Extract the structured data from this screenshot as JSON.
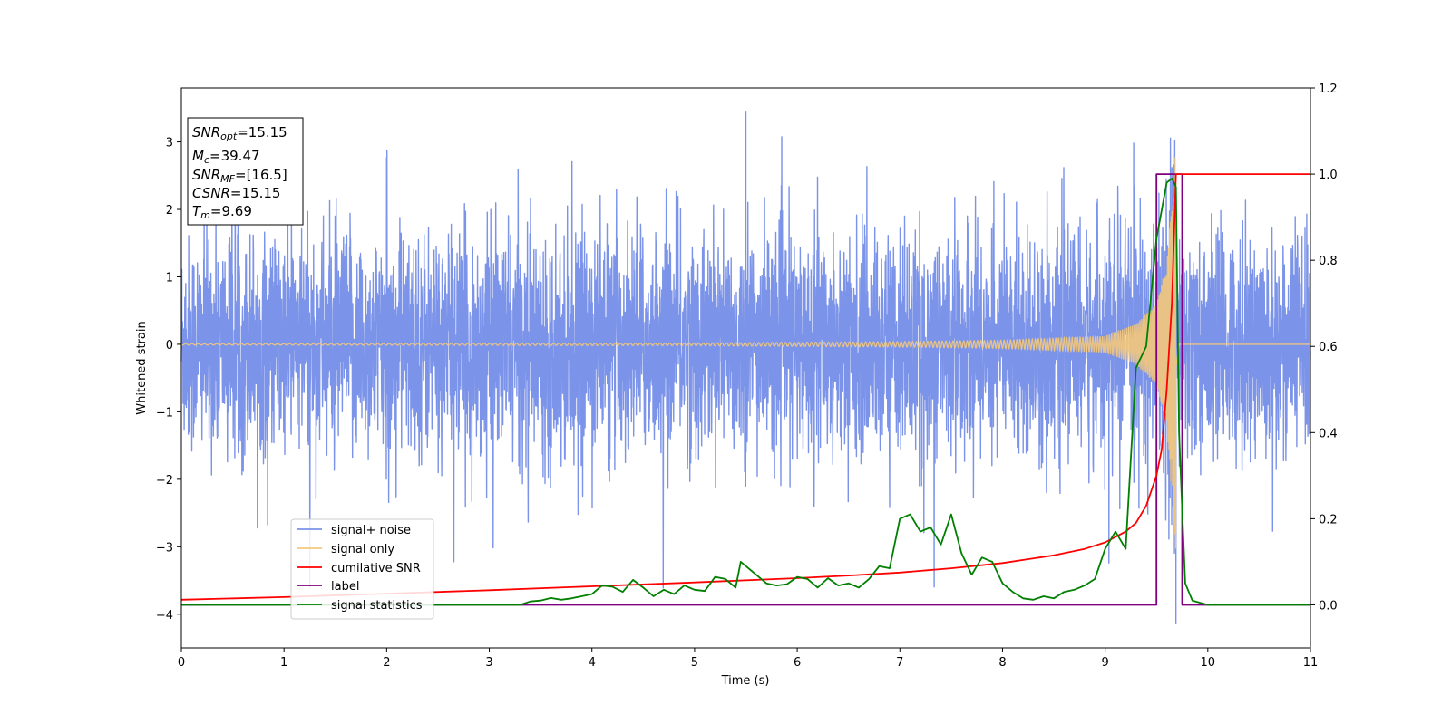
{
  "chart_data": {
    "type": "line",
    "xlabel": "Time (s)",
    "ylabel": "Whitened strain",
    "xlim": [
      0,
      11
    ],
    "ylim": [
      -4.5,
      3.8
    ],
    "y2lim": [
      -0.1,
      1.2
    ],
    "x_ticks": [
      "0",
      "1",
      "2",
      "3",
      "4",
      "5",
      "6",
      "7",
      "8",
      "9",
      "10",
      "11"
    ],
    "y_ticks": [
      "3",
      "2",
      "1",
      "0",
      "−1",
      "−2",
      "−3",
      "−4"
    ],
    "y_tick_values": [
      3,
      2,
      1,
      0,
      -1,
      -2,
      -3,
      -4
    ],
    "y2_ticks": [
      "1.2",
      "1.0",
      "0.8",
      "0.6",
      "0.4",
      "0.2",
      "0.0"
    ],
    "y2_tick_values": [
      1.2,
      1.0,
      0.8,
      0.6,
      0.4,
      0.2,
      0.0
    ],
    "grid": false,
    "legend_position": "lower-left",
    "info_box": {
      "snr_opt": {
        "main": "SNR",
        "sub": "opt",
        "value": "=15.15"
      },
      "mc": {
        "main": "M",
        "sub": "c",
        "value": "=39.47"
      },
      "snr_mf": {
        "main": "SNR",
        "sub": "MF",
        "value": "=[16.5]"
      },
      "csnr": {
        "main": "CSNR",
        "value": "=15.15"
      },
      "tm": {
        "main": "T",
        "sub": "m",
        "value": "=9.69"
      }
    },
    "series": [
      {
        "name": "signal+ noise",
        "color": "#7b93e8",
        "axis": "left",
        "description": "dense noise band roughly between -1.8 and 2.0 with spikes up to 3.45 and down to -4.2",
        "noise_envelope": [
          -1.8,
          2.0
        ],
        "extremes": {
          "max": 3.45,
          "max_x": 5.5,
          "min": -4.15,
          "min_x": 9.69
        }
      },
      {
        "name": "signal only",
        "color": "#f5c97a",
        "axis": "left",
        "description": "chirp with amplitude growing towards merger at t=9.69",
        "amplitude_points": [
          [
            0,
            0.01
          ],
          [
            5,
            0.02
          ],
          [
            7,
            0.04
          ],
          [
            8,
            0.06
          ],
          [
            9,
            0.12
          ],
          [
            9.3,
            0.3
          ],
          [
            9.5,
            0.6
          ],
          [
            9.6,
            1.2
          ],
          [
            9.69,
            3.1
          ],
          [
            9.72,
            0
          ]
        ]
      },
      {
        "name": "cumilative SNR",
        "color": "#ff0000",
        "axis": "right",
        "points": [
          [
            0,
            0.012
          ],
          [
            1,
            0.018
          ],
          [
            2,
            0.026
          ],
          [
            3,
            0.034
          ],
          [
            4,
            0.043
          ],
          [
            5,
            0.052
          ],
          [
            6,
            0.062
          ],
          [
            6.5,
            0.068
          ],
          [
            7,
            0.075
          ],
          [
            7.5,
            0.085
          ],
          [
            8,
            0.097
          ],
          [
            8.5,
            0.115
          ],
          [
            8.8,
            0.13
          ],
          [
            9.0,
            0.145
          ],
          [
            9.2,
            0.17
          ],
          [
            9.3,
            0.19
          ],
          [
            9.4,
            0.23
          ],
          [
            9.5,
            0.3
          ],
          [
            9.55,
            0.36
          ],
          [
            9.6,
            0.5
          ],
          [
            9.65,
            0.7
          ],
          [
            9.69,
            1.0
          ],
          [
            11,
            1.0
          ]
        ]
      },
      {
        "name": "label",
        "color": "#800080",
        "axis": "right",
        "points": [
          [
            0,
            0.0
          ],
          [
            9.5,
            0.0
          ],
          [
            9.5,
            1.0
          ],
          [
            9.75,
            1.0
          ],
          [
            9.75,
            0.0
          ],
          [
            11,
            0.0
          ]
        ]
      },
      {
        "name": "signal statistics",
        "color": "#008000",
        "axis": "right",
        "points": [
          [
            0,
            0.0
          ],
          [
            0.5,
            0.0
          ],
          [
            1,
            0.0
          ],
          [
            1.5,
            0.0
          ],
          [
            2,
            0.0
          ],
          [
            2.5,
            0.0
          ],
          [
            3,
            0.0
          ],
          [
            3.3,
            0.0
          ],
          [
            3.4,
            0.008
          ],
          [
            3.5,
            0.01
          ],
          [
            3.6,
            0.016
          ],
          [
            3.7,
            0.012
          ],
          [
            3.8,
            0.015
          ],
          [
            3.9,
            0.02
          ],
          [
            4.0,
            0.025
          ],
          [
            4.1,
            0.045
          ],
          [
            4.2,
            0.042
          ],
          [
            4.3,
            0.03
          ],
          [
            4.4,
            0.058
          ],
          [
            4.5,
            0.04
          ],
          [
            4.6,
            0.02
          ],
          [
            4.7,
            0.035
          ],
          [
            4.8,
            0.025
          ],
          [
            4.9,
            0.045
          ],
          [
            5.0,
            0.035
          ],
          [
            5.1,
            0.032
          ],
          [
            5.2,
            0.065
          ],
          [
            5.3,
            0.06
          ],
          [
            5.4,
            0.04
          ],
          [
            5.45,
            0.1
          ],
          [
            5.6,
            0.07
          ],
          [
            5.7,
            0.05
          ],
          [
            5.8,
            0.045
          ],
          [
            5.9,
            0.048
          ],
          [
            6.0,
            0.065
          ],
          [
            6.1,
            0.06
          ],
          [
            6.2,
            0.04
          ],
          [
            6.3,
            0.062
          ],
          [
            6.4,
            0.045
          ],
          [
            6.5,
            0.05
          ],
          [
            6.6,
            0.04
          ],
          [
            6.7,
            0.06
          ],
          [
            6.8,
            0.09
          ],
          [
            6.9,
            0.085
          ],
          [
            7.0,
            0.2
          ],
          [
            7.1,
            0.21
          ],
          [
            7.2,
            0.17
          ],
          [
            7.3,
            0.18
          ],
          [
            7.4,
            0.14
          ],
          [
            7.5,
            0.21
          ],
          [
            7.6,
            0.12
          ],
          [
            7.7,
            0.07
          ],
          [
            7.8,
            0.11
          ],
          [
            7.9,
            0.1
          ],
          [
            8.0,
            0.05
          ],
          [
            8.1,
            0.03
          ],
          [
            8.2,
            0.015
          ],
          [
            8.3,
            0.012
          ],
          [
            8.4,
            0.02
          ],
          [
            8.5,
            0.015
          ],
          [
            8.6,
            0.03
          ],
          [
            8.7,
            0.035
          ],
          [
            8.8,
            0.045
          ],
          [
            8.9,
            0.06
          ],
          [
            9.0,
            0.13
          ],
          [
            9.1,
            0.17
          ],
          [
            9.2,
            0.13
          ],
          [
            9.3,
            0.55
          ],
          [
            9.4,
            0.6
          ],
          [
            9.5,
            0.85
          ],
          [
            9.6,
            0.98
          ],
          [
            9.65,
            0.99
          ],
          [
            9.69,
            0.97
          ],
          [
            9.72,
            0.4
          ],
          [
            9.78,
            0.05
          ],
          [
            9.85,
            0.01
          ],
          [
            10.0,
            0.0
          ],
          [
            11,
            0.0
          ]
        ]
      }
    ]
  }
}
